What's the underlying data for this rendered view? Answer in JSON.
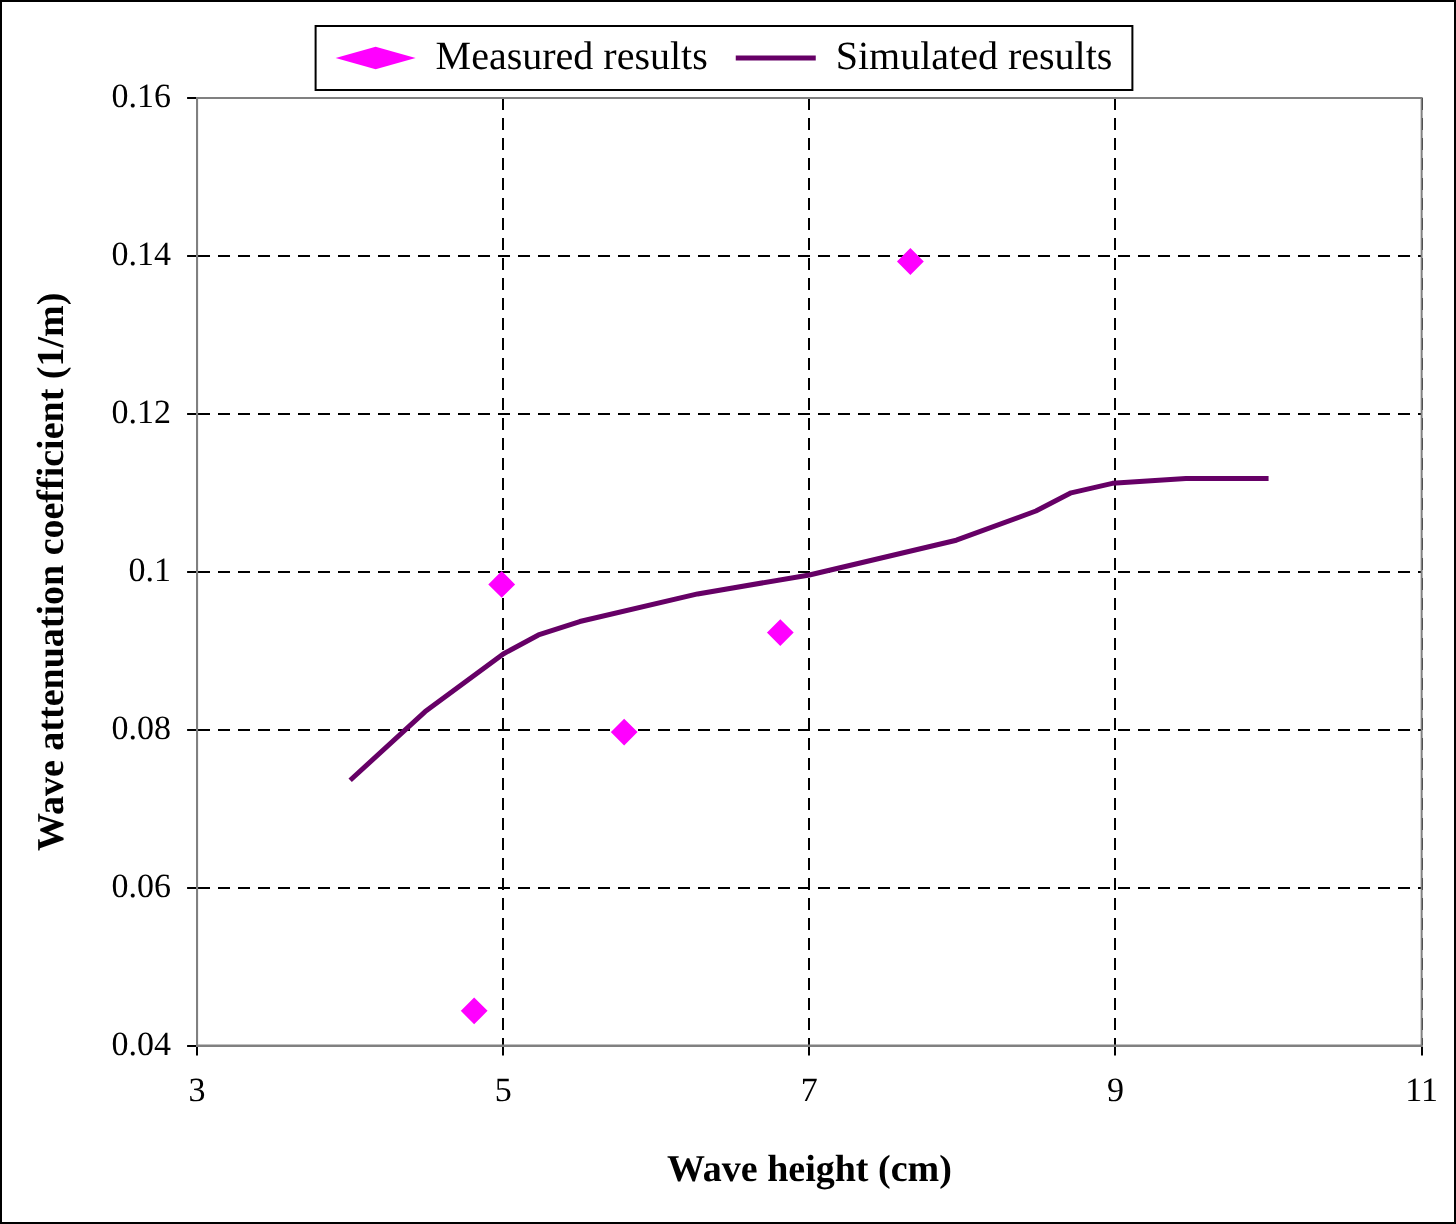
{
  "chart_data": {
    "type": "scatter",
    "xlabel": "Wave height (cm)",
    "ylabel": "Wave attenuation coefficient (1/m)",
    "xlim": [
      3,
      11
    ],
    "xticks": [
      3,
      5,
      7,
      9,
      11
    ],
    "ylim": [
      0.04,
      0.16
    ],
    "yticks": [
      0.04,
      0.06,
      0.08,
      0.1,
      0.12,
      0.14,
      0.16
    ],
    "grid": true,
    "legend": "top",
    "series": [
      {
        "name": "Measured results",
        "marker": "diamond",
        "color": "#ff00ff",
        "x": [
          4.81,
          4.99,
          5.79,
          6.81,
          7.66
        ],
        "values": [
          0.0444,
          0.0984,
          0.0797,
          0.0923,
          0.1393
        ]
      },
      {
        "name": "Simulated results",
        "type": "line",
        "marker": "none",
        "color": "#660066",
        "x": [
          4.0,
          4.49,
          5.0,
          5.23,
          5.5,
          6.27,
          7.0,
          7.96,
          8.48,
          8.71,
          8.98,
          9.46,
          10.0
        ],
        "values": [
          0.0736,
          0.0823,
          0.0896,
          0.092,
          0.0937,
          0.0972,
          0.0996,
          0.104,
          0.1077,
          0.11,
          0.1112,
          0.1118,
          0.1118
        ]
      }
    ]
  }
}
